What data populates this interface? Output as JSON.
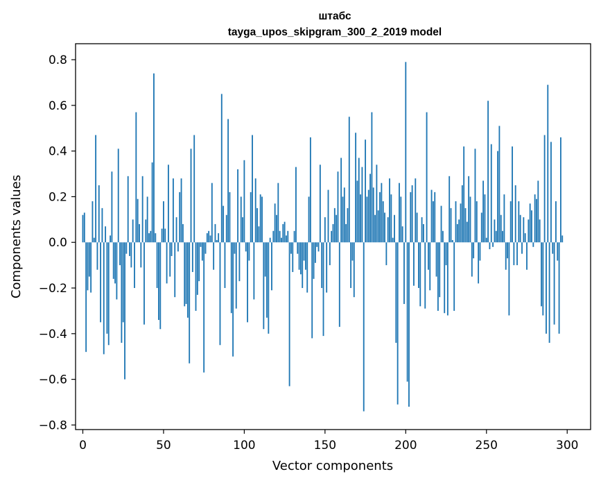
{
  "chart_data": {
    "type": "bar",
    "title": "штабс",
    "subtitle": "tayga_upos_skipgram_300_2_2019 model",
    "xlabel": "Vector components",
    "ylabel": "Components values",
    "xlim": [
      -4.5,
      314.5
    ],
    "ylim": [
      -0.82,
      0.87
    ],
    "xticks": [
      0,
      50,
      100,
      150,
      200,
      250,
      300
    ],
    "xtick_labels": [
      "0",
      "50",
      "100",
      "150",
      "200",
      "250",
      "300"
    ],
    "yticks": [
      -0.8,
      -0.6,
      -0.4,
      -0.2,
      0.0,
      0.2,
      0.4,
      0.6,
      0.8
    ],
    "ytick_labels": [
      "−0.8",
      "−0.6",
      "−0.4",
      "−0.2",
      "0.0",
      "0.2",
      "0.4",
      "0.6",
      "0.8"
    ],
    "color": "#1f77b4",
    "values": [
      0.12,
      0.13,
      -0.48,
      -0.21,
      -0.15,
      -0.22,
      0.18,
      0.02,
      0.47,
      -0.12,
      0.25,
      -0.35,
      0.15,
      -0.49,
      0.07,
      -0.4,
      -0.45,
      0.03,
      0.31,
      -0.16,
      -0.18,
      -0.25,
      0.41,
      -0.1,
      -0.44,
      -0.35,
      -0.6,
      -0.05,
      0.29,
      -0.06,
      -0.11,
      0.1,
      -0.2,
      0.57,
      0.19,
      0.08,
      -0.11,
      0.29,
      -0.36,
      0.1,
      0.2,
      0.04,
      0.05,
      0.35,
      0.74,
      0.04,
      -0.2,
      -0.34,
      -0.38,
      0.06,
      0.18,
      0.06,
      -0.18,
      0.34,
      -0.15,
      -0.06,
      0.28,
      -0.24,
      0.11,
      -0.04,
      0.22,
      0.28,
      0.08,
      -0.28,
      -0.27,
      -0.33,
      -0.53,
      0.41,
      -0.13,
      0.47,
      -0.3,
      -0.23,
      -0.17,
      -0.02,
      -0.08,
      -0.57,
      -0.05,
      0.04,
      0.05,
      0.03,
      0.26,
      -0.12,
      0.08,
      0.01,
      0.04,
      -0.45,
      0.65,
      0.16,
      -0.2,
      0.12,
      0.54,
      0.22,
      -0.31,
      -0.5,
      -0.05,
      -0.29,
      0.32,
      -0.17,
      0.2,
      0.11,
      0.36,
      -0.04,
      -0.35,
      -0.08,
      0.22,
      0.47,
      -0.25,
      0.28,
      0.15,
      0.07,
      0.21,
      0.2,
      -0.38,
      -0.15,
      -0.33,
      -0.4,
      0.02,
      -0.21,
      0.05,
      0.17,
      0.12,
      0.26,
      0.05,
      0.02,
      0.08,
      0.09,
      0.03,
      0.05,
      -0.63,
      -0.05,
      -0.13,
      0.05,
      0.33,
      -0.05,
      -0.12,
      -0.14,
      -0.2,
      -0.08,
      -0.12,
      -0.22,
      0.2,
      0.46,
      -0.42,
      -0.16,
      -0.09,
      -0.02,
      -0.04,
      0.34,
      -0.2,
      -0.41,
      0.11,
      -0.22,
      0.23,
      -0.1,
      0.05,
      0.08,
      0.15,
      0.12,
      0.31,
      -0.37,
      0.37,
      0.2,
      0.24,
      0.08,
      0.15,
      0.55,
      -0.2,
      -0.08,
      -0.24,
      0.48,
      0.27,
      0.37,
      0.21,
      0.33,
      -0.74,
      0.45,
      0.2,
      0.23,
      0.3,
      0.57,
      0.24,
      0.12,
      0.34,
      0.14,
      0.22,
      0.26,
      0.18,
      0.13,
      -0.1,
      0.11,
      0.28,
      0.21,
      0.02,
      0.12,
      -0.44,
      -0.71,
      0.26,
      0.2,
      0.07,
      -0.27,
      0.79,
      -0.61,
      -0.72,
      0.22,
      0.25,
      -0.19,
      0.28,
      0.13,
      -0.2,
      -0.28,
      0.11,
      0.08,
      -0.29,
      0.57,
      -0.12,
      -0.21,
      0.23,
      0.18,
      0.22,
      -0.15,
      -0.3,
      -0.24,
      0.16,
      0.05,
      -0.31,
      -0.1,
      -0.32,
      0.29,
      0.15,
      0.01,
      -0.3,
      0.18,
      0.08,
      0.1,
      0.17,
      0.25,
      0.42,
      0.15,
      0.09,
      0.29,
      0.2,
      -0.15,
      -0.07,
      0.41,
      0.18,
      -0.18,
      -0.08,
      0.13,
      0.27,
      0.21,
      0.02,
      0.62,
      -0.03,
      0.43,
      -0.02,
      0.1,
      0.05,
      0.4,
      0.51,
      0.12,
      0.05,
      0.21,
      -0.12,
      -0.07,
      -0.32,
      0.18,
      0.42,
      -0.1,
      0.25,
      -0.1,
      0.18,
      0.12,
      -0.05,
      0.11,
      0.04,
      -0.12,
      0.1,
      0.17,
      0.14,
      -0.02,
      0.21,
      0.19,
      0.27,
      0.1,
      -0.28,
      -0.32,
      0.47,
      -0.4,
      0.69,
      -0.44,
      0.44,
      -0.05,
      -0.36,
      0.18,
      -0.08,
      -0.4,
      0.46,
      0.03
    ]
  }
}
